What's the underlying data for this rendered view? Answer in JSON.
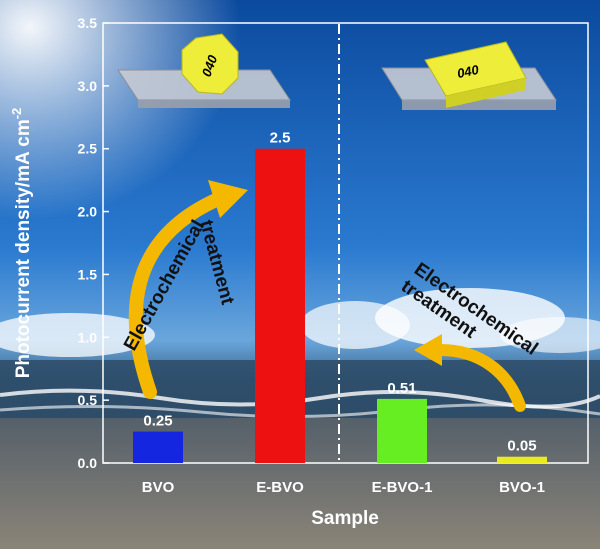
{
  "chart_data": {
    "type": "bar",
    "categories": [
      "BVO",
      "E-BVO",
      "E-BVO-1",
      "BVO-1"
    ],
    "values": [
      0.25,
      2.5,
      0.51,
      0.05
    ],
    "value_labels": [
      "0.25",
      "2.5",
      "0.51",
      "0.05"
    ],
    "bar_colors": [
      "#1526e0",
      "#ee1111",
      "#66ee22",
      "#eaea22"
    ],
    "xlabel": "Sample",
    "ylabel_main": "Photocurrent density/mA cm",
    "ylabel_sup": "-2",
    "ylim": [
      0,
      3.5
    ],
    "yticks": [
      "0.0",
      "0.5",
      "1.0",
      "1.5",
      "2.0",
      "2.5",
      "3.0",
      "3.5"
    ],
    "grid": false
  },
  "annotations": {
    "left_line1": "Electrochemical",
    "left_line2": "treatment",
    "right_line1": "Electrochemical",
    "right_line2": "treatment",
    "left_crystal_label": "040",
    "right_crystal_label": "040"
  },
  "colors": {
    "arrow": "#f5b800",
    "crystal": "#eeee33",
    "substrate": "#b8bdc9",
    "divider": "#ffffff"
  }
}
